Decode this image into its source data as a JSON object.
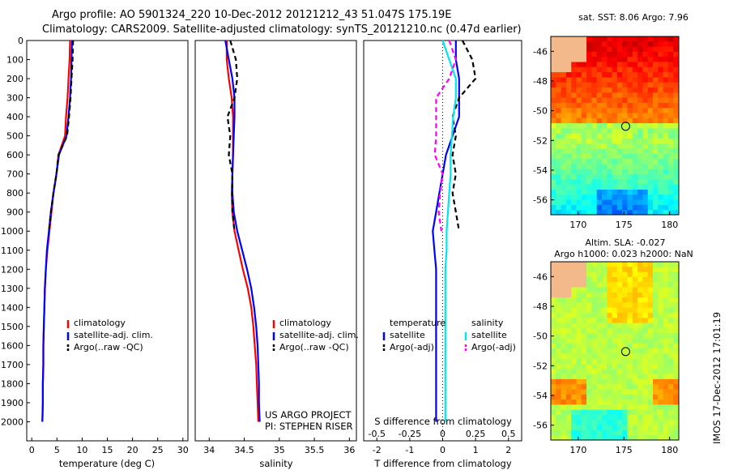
{
  "header": {
    "line1": "Argo profile: AO 5901324_220 10-Dec-2012 20121212_43 51.047S 175.19E",
    "line2": "Climatology: CARS2009. Satellite-adjusted climatology: synTS_20121210.nc (0.47d earlier)"
  },
  "colors": {
    "climatology": "#ff0000",
    "satellite": "#0000ff",
    "argo": "#000000",
    "salinity_satellite": "#00e5ee",
    "salinity_argo": "#ff00ff",
    "land": "#f4b98a"
  },
  "project": {
    "line1": "US ARGO PROJECT",
    "line2": "PI: STEPHEN RISER"
  },
  "timestamp": "IMOS 17-Dec-2012 17:01:19",
  "chart_data": [
    {
      "type": "line",
      "name": "temperature-profile",
      "xlabel": "temperature (deg C)",
      "ylabel": "",
      "xlim": [
        -1,
        31
      ],
      "ylim": [
        2100,
        0
      ],
      "xticks": [
        0,
        5,
        10,
        15,
        20,
        25,
        30
      ],
      "yticks": [
        0,
        100,
        200,
        300,
        400,
        500,
        600,
        700,
        800,
        900,
        1000,
        1100,
        1200,
        1300,
        1400,
        1500,
        1600,
        1700,
        1800,
        1900,
        2000
      ],
      "legend": [
        "climatology",
        "satellite-adj. clim.",
        "Argo(..raw -QC)"
      ],
      "legend_position": "bottom",
      "series": [
        {
          "name": "climatology",
          "x": [
            7.6,
            7.5,
            7.3,
            7.1,
            6.8,
            6.6,
            5.3,
            4.9,
            4.3,
            3.9,
            3.5,
            3.1,
            2.8,
            2.6,
            2.5,
            2.4,
            2.3,
            2.3,
            2.2,
            2.2,
            2.1
          ],
          "y": [
            0,
            100,
            200,
            300,
            400,
            500,
            600,
            700,
            800,
            900,
            1000,
            1100,
            1200,
            1300,
            1400,
            1500,
            1600,
            1700,
            1800,
            1900,
            2000
          ]
        },
        {
          "name": "satellite-adj. clim.",
          "x": [
            8.0,
            7.9,
            7.8,
            7.6,
            7.3,
            6.9,
            5.4,
            4.9,
            4.3,
            3.8,
            3.4,
            3.0,
            2.8,
            2.6,
            2.5,
            2.4,
            2.3,
            2.3,
            2.2,
            2.2,
            2.1
          ],
          "y": [
            0,
            100,
            200,
            300,
            400,
            500,
            600,
            700,
            800,
            900,
            1000,
            1100,
            1200,
            1300,
            1400,
            1500,
            1600,
            1700,
            1800,
            1900,
            2000
          ]
        },
        {
          "name": "Argo(..raw -QC)",
          "x": [
            8.2,
            8.1,
            7.9,
            7.7,
            7.4,
            7.0,
            5.3,
            4.9,
            4.3,
            3.8,
            3.4
          ],
          "y": [
            0,
            100,
            200,
            300,
            400,
            500,
            600,
            700,
            800,
            900,
            1000
          ]
        }
      ]
    },
    {
      "type": "line",
      "name": "salinity-profile",
      "xlabel": "salinity",
      "ylabel": "",
      "xlim": [
        33.8,
        36.1
      ],
      "ylim": [
        2100,
        0
      ],
      "xticks": [
        34,
        34.5,
        35,
        35.5,
        36
      ],
      "legend": [
        "climatology",
        "satellite-adj. clim.",
        "Argo(..raw -QC)"
      ],
      "legend_position": "bottom",
      "series": [
        {
          "name": "climatology",
          "x": [
            34.25,
            34.25,
            34.28,
            34.32,
            34.34,
            34.34,
            34.34,
            34.33,
            34.32,
            34.33,
            34.36,
            34.42,
            34.48,
            34.55,
            34.6,
            34.63,
            34.65,
            34.67,
            34.68,
            34.69,
            34.7
          ],
          "y": [
            0,
            100,
            200,
            300,
            400,
            500,
            600,
            700,
            800,
            900,
            1000,
            1100,
            1200,
            1300,
            1400,
            1500,
            1600,
            1700,
            1800,
            1900,
            2000
          ]
        },
        {
          "name": "satellite-adj. clim.",
          "x": [
            34.23,
            34.28,
            34.33,
            34.36,
            34.36,
            34.35,
            34.34,
            34.33,
            34.33,
            34.35,
            34.4,
            34.47,
            34.54,
            34.6,
            34.64,
            34.67,
            34.69,
            34.7,
            34.71,
            34.71,
            34.72
          ],
          "y": [
            0,
            100,
            200,
            300,
            400,
            500,
            600,
            700,
            800,
            900,
            1000,
            1100,
            1200,
            1300,
            1400,
            1500,
            1600,
            1700,
            1800,
            1900,
            2000
          ]
        },
        {
          "name": "Argo(..raw -QC)",
          "x": [
            34.3,
            34.38,
            34.4,
            34.36,
            34.26,
            34.3,
            34.28,
            34.33,
            34.33,
            34.33,
            34.36
          ],
          "y": [
            0,
            100,
            200,
            300,
            400,
            500,
            600,
            700,
            800,
            900,
            1000
          ]
        }
      ]
    },
    {
      "type": "line",
      "name": "difference-profile",
      "xlabel": "T difference from climatology",
      "xlabel_top": "S difference from climatology",
      "xlim": [
        -2.4,
        2.4
      ],
      "ylim": [
        2100,
        0
      ],
      "xticks": [
        -2,
        -1,
        0,
        1,
        2
      ],
      "xticks_top": [
        -0.5,
        -0.25,
        0,
        0.25,
        0.5
      ],
      "legend_temperature": [
        "temperature",
        "satellite",
        "Argo(-adj)"
      ],
      "legend_salinity": [
        "salinity",
        "satellite",
        "Argo(-adj)"
      ],
      "legend_position": "bottom",
      "series": [
        {
          "name": "temperature satellite",
          "x": [
            0.4,
            0.4,
            0.5,
            0.5,
            0.5,
            0.3,
            0.1,
            0.0,
            -0.1,
            -0.2,
            -0.3,
            -0.25,
            -0.2,
            -0.2,
            -0.2,
            -0.2,
            -0.2,
            -0.2,
            -0.2,
            -0.2,
            -0.2
          ],
          "y": [
            0,
            100,
            200,
            300,
            400,
            500,
            600,
            700,
            800,
            900,
            1000,
            1100,
            1200,
            1300,
            1400,
            1500,
            1600,
            1700,
            1800,
            1900,
            2000
          ]
        },
        {
          "name": "temperature Argo(-adj)",
          "x": [
            0.6,
            0.9,
            1.0,
            0.5,
            0.3,
            0.4,
            0.3,
            0.4,
            0.3,
            0.4,
            0.5
          ],
          "y": [
            0,
            100,
            200,
            300,
            400,
            500,
            600,
            700,
            800,
            900,
            1000
          ]
        },
        {
          "name": "salinity satellite",
          "x": [
            0.0,
            0.05,
            0.1,
            0.1,
            0.08,
            0.07,
            0.06,
            0.06,
            0.05,
            0.04,
            0.03,
            0.03,
            0.02,
            0.02,
            0.02,
            0.02,
            0.02,
            0.02,
            0.02,
            0.02,
            0.02
          ],
          "y": [
            0,
            100,
            200,
            300,
            400,
            500,
            600,
            700,
            800,
            900,
            1000,
            1100,
            1200,
            1300,
            1400,
            1500,
            1600,
            1700,
            1800,
            1900,
            2000
          ]
        },
        {
          "name": "salinity Argo(-adj)",
          "x": [
            0.05,
            0.1,
            0.05,
            -0.05,
            -0.05,
            -0.05,
            -0.06,
            0.0,
            -0.02,
            -0.03,
            -0.01
          ],
          "y": [
            0,
            100,
            200,
            300,
            400,
            500,
            600,
            700,
            800,
            900,
            1000
          ]
        }
      ]
    },
    {
      "type": "heatmap",
      "name": "sst-map",
      "title": "sat. SST: 8.06 Argo: 7.96",
      "xticks": [
        170,
        175,
        180
      ],
      "yticks": [
        -46,
        -48,
        -50,
        -52,
        -54,
        -56
      ],
      "xlim": [
        167,
        181
      ],
      "ylim": [
        -57,
        -45
      ],
      "argo_position": {
        "lon": 175.19,
        "lat": -51.047
      },
      "grid": false
    },
    {
      "type": "heatmap",
      "name": "sla-map",
      "title_line1": "Altim. SLA: -0.027",
      "title_line2": "Argo h1000: 0.023 h2000: NaN",
      "xticks": [
        170,
        175,
        180
      ],
      "yticks": [
        -46,
        -48,
        -50,
        -52,
        -54,
        -56
      ],
      "xlim": [
        167,
        181
      ],
      "ylim": [
        -57,
        -45
      ],
      "argo_position": {
        "lon": 175.19,
        "lat": -51.047
      },
      "grid": false
    }
  ]
}
